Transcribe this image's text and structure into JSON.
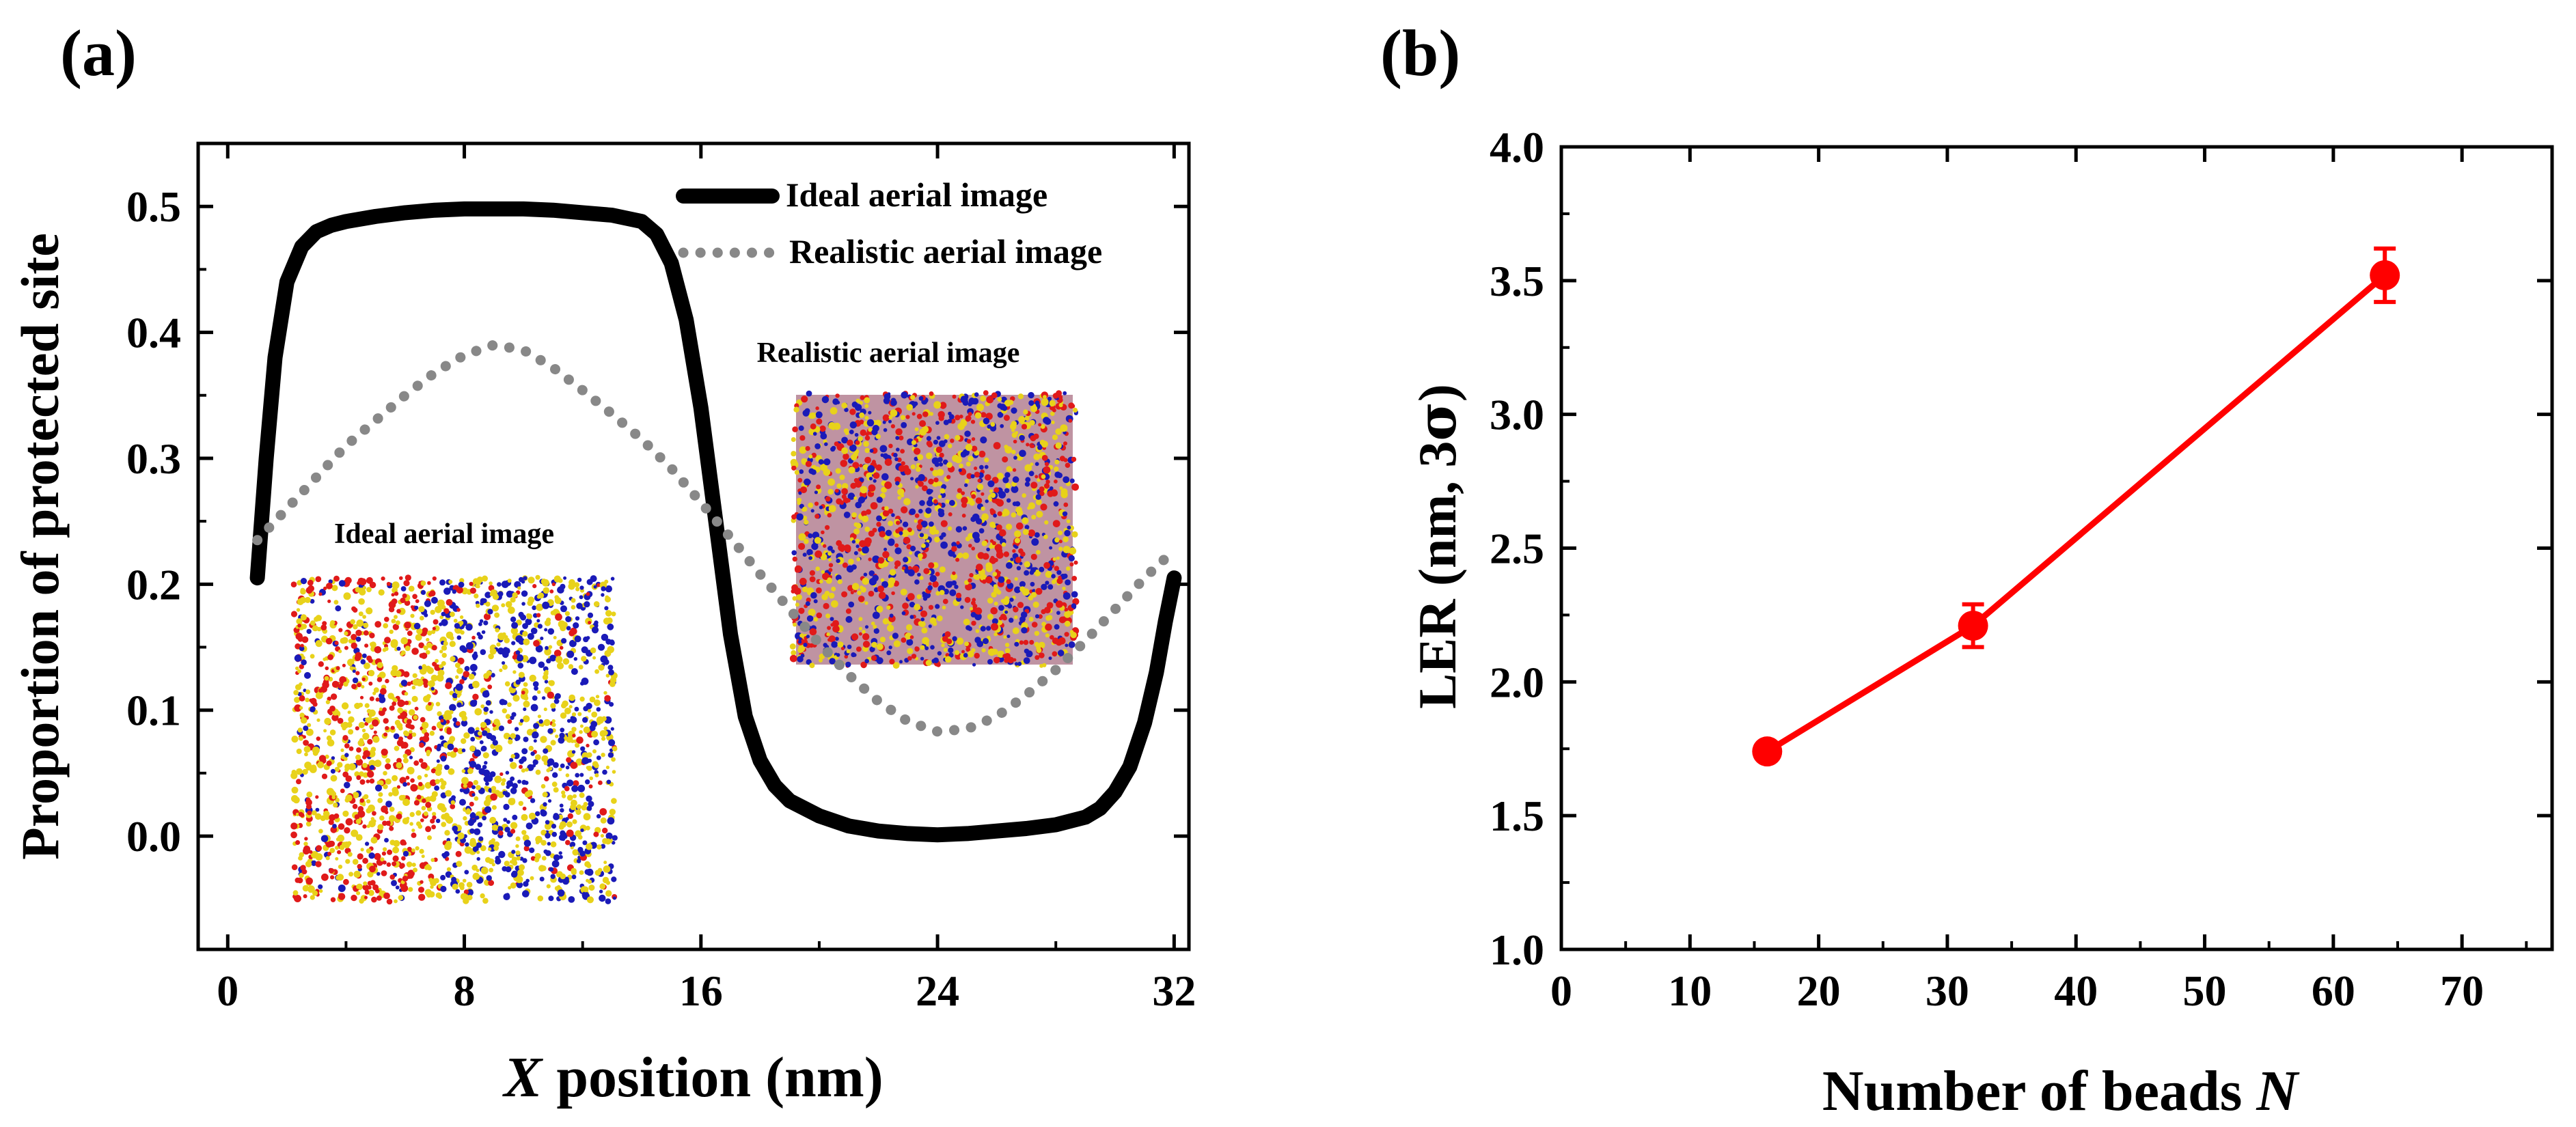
{
  "chart_data": [
    {
      "panel_label": "(a)",
      "type": "line",
      "xlabel_var": "X",
      "xlabel_rest": " position (nm)",
      "ylabel": "Proportion of protected site",
      "xlim": [
        -1,
        32.5
      ],
      "ylim": [
        -0.09,
        0.55
      ],
      "xticks": [
        0,
        8,
        16,
        24,
        32
      ],
      "xtick_labels": [
        "0",
        "8",
        "16",
        "24",
        "32"
      ],
      "yticks": [
        0.0,
        0.1,
        0.2,
        0.3,
        0.4,
        0.5
      ],
      "ytick_labels": [
        "0.0",
        "0.1",
        "0.2",
        "0.3",
        "0.4",
        "0.5"
      ],
      "legend_position": "top-right",
      "series": [
        {
          "name": "Ideal aerial image",
          "style": "solid-thick",
          "color": "#000000",
          "x": [
            1.0,
            1.3,
            1.6,
            2.0,
            2.5,
            3.0,
            3.5,
            4.0,
            5.0,
            6.0,
            7.0,
            8.0,
            9.0,
            10.0,
            11.0,
            12.0,
            13.0,
            14.0,
            14.5,
            15.0,
            15.5,
            16.0,
            16.5,
            17.0,
            17.5,
            18.0,
            18.5,
            19.0,
            20.0,
            21.0,
            22.0,
            23.0,
            24.0,
            25.0,
            26.0,
            27.0,
            28.0,
            29.0,
            29.5,
            30.0,
            30.5,
            31.0,
            31.4,
            31.7,
            32.0
          ],
          "y": [
            0.205,
            0.3,
            0.38,
            0.44,
            0.468,
            0.48,
            0.485,
            0.488,
            0.492,
            0.495,
            0.497,
            0.498,
            0.498,
            0.498,
            0.497,
            0.495,
            0.493,
            0.488,
            0.478,
            0.455,
            0.41,
            0.34,
            0.25,
            0.16,
            0.095,
            0.06,
            0.04,
            0.028,
            0.016,
            0.008,
            0.004,
            0.002,
            0.001,
            0.002,
            0.004,
            0.006,
            0.009,
            0.015,
            0.022,
            0.035,
            0.055,
            0.09,
            0.13,
            0.17,
            0.205
          ]
        },
        {
          "name": "Realistic aerial image",
          "style": "dotted",
          "color": "#888888",
          "x": [
            1.0,
            2.0,
            3.0,
            4.0,
            5.0,
            6.0,
            7.0,
            8.0,
            9.0,
            10.0,
            11.0,
            12.0,
            13.0,
            14.0,
            15.0,
            16.0,
            17.0,
            18.0,
            19.0,
            20.0,
            21.0,
            22.0,
            23.0,
            24.0,
            25.0,
            26.0,
            27.0,
            28.0,
            29.0,
            30.0,
            31.0,
            32.0
          ],
          "y": [
            0.235,
            0.26,
            0.285,
            0.31,
            0.33,
            0.35,
            0.368,
            0.382,
            0.39,
            0.386,
            0.372,
            0.354,
            0.335,
            0.315,
            0.292,
            0.265,
            0.237,
            0.208,
            0.18,
            0.153,
            0.128,
            0.107,
            0.091,
            0.083,
            0.085,
            0.095,
            0.112,
            0.132,
            0.155,
            0.18,
            0.205,
            0.227
          ]
        }
      ],
      "insets": [
        {
          "label": "Realistic aerial image",
          "pattern": "mixed",
          "colors": [
            "#e8d21a",
            "#e01a1a",
            "#1a1ab8"
          ]
        },
        {
          "label": "Ideal aerial image",
          "pattern": "split",
          "colors": [
            "#e8d21a",
            "#e01a1a",
            "#1a1ab8"
          ]
        }
      ]
    },
    {
      "panel_label": "(b)",
      "type": "line",
      "xlabel_text": "Number of beads ",
      "xlabel_var": "N",
      "ylabel_text": "LER (nm, 3",
      "ylabel_sigma": "σ",
      "ylabel_close": ")",
      "xlim": [
        0,
        77
      ],
      "ylim": [
        1.0,
        4.0
      ],
      "xticks": [
        0,
        10,
        20,
        30,
        40,
        50,
        60,
        70
      ],
      "xtick_labels": [
        "0",
        "10",
        "20",
        "30",
        "40",
        "50",
        "60",
        "70"
      ],
      "yticks": [
        1.0,
        1.5,
        2.0,
        2.5,
        3.0,
        3.5,
        4.0
      ],
      "ytick_labels": [
        "1.0",
        "1.5",
        "2.0",
        "2.5",
        "3.0",
        "3.5",
        "4.0"
      ],
      "series": [
        {
          "name": "LER",
          "color": "#ff0000",
          "x": [
            16,
            32,
            64
          ],
          "y": [
            1.74,
            2.21,
            3.52
          ],
          "yerr": [
            0.03,
            0.08,
            0.1
          ]
        }
      ]
    }
  ]
}
